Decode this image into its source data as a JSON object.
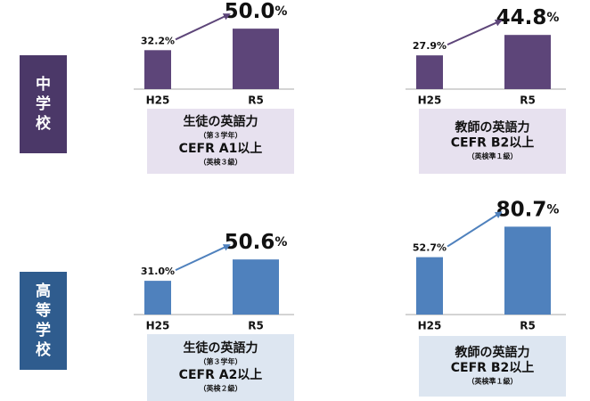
{
  "row_labels": [
    "中学校",
    "高等学校"
  ],
  "chart_data": [
    {
      "type": "bar",
      "categories": [
        "H25",
        "R5"
      ],
      "values": [
        32.2,
        50.0
      ],
      "value_labels": [
        "32.2%",
        "50.0%"
      ],
      "color": "#5d4579",
      "ylim": [
        0,
        70
      ],
      "caption": [
        "生徒の英語力",
        "（第３学年）",
        "CEFR A1以上",
        "（英検３級）"
      ]
    },
    {
      "type": "bar",
      "categories": [
        "H25",
        "R5"
      ],
      "values": [
        27.9,
        44.8
      ],
      "value_labels": [
        "27.9%",
        "44.8%"
      ],
      "color": "#5d4579",
      "ylim": [
        0,
        70
      ],
      "caption": [
        "教師の英語力",
        "CEFR B2以上",
        "（英検準１級）"
      ]
    },
    {
      "type": "bar",
      "categories": [
        "H25",
        "R5"
      ],
      "values": [
        31.0,
        50.6
      ],
      "value_labels": [
        "31.0%",
        "50.6%"
      ],
      "color": "#4f81bd",
      "ylim": [
        0,
        90
      ],
      "caption": [
        "生徒の英語力",
        "（第３学年）",
        "CEFR A2以上",
        "（英検２級）"
      ]
    },
    {
      "type": "bar",
      "categories": [
        "H25",
        "R5"
      ],
      "values": [
        52.7,
        80.7
      ],
      "value_labels": [
        "52.7%",
        "80.7%"
      ],
      "color": "#4f81bd",
      "ylim": [
        0,
        90
      ],
      "caption": [
        "教師の英語力",
        "CEFR B2以上",
        "（英検準１級）"
      ]
    }
  ]
}
